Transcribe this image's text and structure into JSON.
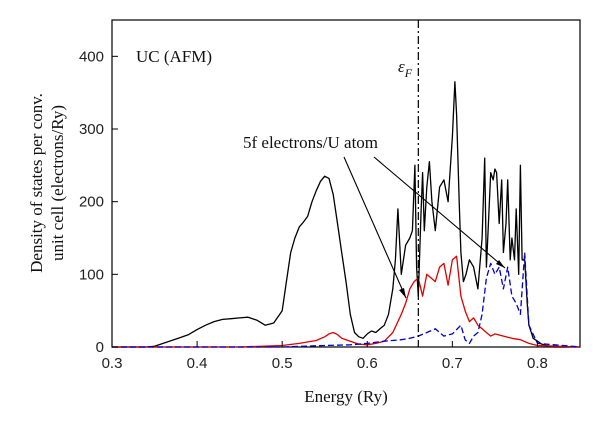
{
  "chart_data": {
    "type": "line",
    "title": "",
    "xlabel": "Energy (Ry)",
    "ylabel_line1": "Density of states per conv.",
    "ylabel_line2": "unit cell (electrons/Ry)",
    "xlim": [
      0.3,
      0.85
    ],
    "ylim": [
      0,
      450
    ],
    "xticks": [
      0.3,
      0.4,
      0.5,
      0.6,
      0.7,
      0.8
    ],
    "xtick_labels": [
      "0.3",
      "0.4",
      "0.5",
      "0.6",
      "0.7",
      "0.8"
    ],
    "yticks": [
      0,
      100,
      200,
      300,
      400
    ],
    "ytick_labels": [
      "0",
      "100",
      "200",
      "300",
      "400"
    ],
    "grid": false,
    "annotations": {
      "inset_label": "UC (AFM)",
      "fermi_label": "ε",
      "fermi_sub": "F",
      "fermi_energy": 0.66,
      "f_label": "5f electrons/U atom"
    },
    "colors": {
      "total": "#000000",
      "f_up": "#e00000",
      "f_down": "#0000cc",
      "fermi": "#000000"
    },
    "series": [
      {
        "style": "solid",
        "color": "#000000",
        "x": [
          0.3,
          0.34,
          0.35,
          0.36,
          0.37,
          0.38,
          0.39,
          0.4,
          0.41,
          0.42,
          0.43,
          0.44,
          0.45,
          0.46,
          0.47,
          0.48,
          0.49,
          0.5,
          0.505,
          0.51,
          0.515,
          0.52,
          0.525,
          0.53,
          0.535,
          0.54,
          0.545,
          0.55,
          0.555,
          0.56,
          0.565,
          0.57,
          0.575,
          0.58,
          0.585,
          0.59,
          0.595,
          0.6,
          0.605,
          0.61,
          0.615,
          0.62,
          0.625,
          0.63,
          0.633,
          0.636,
          0.64,
          0.645,
          0.65,
          0.653,
          0.656,
          0.658,
          0.66,
          0.663,
          0.665,
          0.667,
          0.67,
          0.673,
          0.676,
          0.68,
          0.685,
          0.69,
          0.695,
          0.7,
          0.703,
          0.705,
          0.708,
          0.71,
          0.713,
          0.716,
          0.72,
          0.725,
          0.73,
          0.735,
          0.738,
          0.74,
          0.742,
          0.745,
          0.748,
          0.75,
          0.752,
          0.755,
          0.758,
          0.76,
          0.763,
          0.765,
          0.768,
          0.77,
          0.773,
          0.775,
          0.778,
          0.78,
          0.782,
          0.785,
          0.788,
          0.79,
          0.795,
          0.8,
          0.805,
          0.81,
          0.815,
          0.82,
          0.85
        ],
        "y": [
          0,
          0,
          1,
          5,
          9,
          13,
          17,
          24,
          30,
          35,
          38,
          39,
          40,
          41,
          37,
          30,
          33,
          50,
          90,
          130,
          150,
          165,
          172,
          180,
          200,
          215,
          228,
          235,
          232,
          210,
          170,
          130,
          90,
          45,
          20,
          14,
          12,
          18,
          22,
          20,
          25,
          30,
          45,
          80,
          120,
          190,
          100,
          140,
          150,
          160,
          250,
          110,
          70,
          180,
          240,
          160,
          220,
          255,
          200,
          160,
          220,
          230,
          200,
          290,
          365,
          320,
          200,
          130,
          90,
          100,
          120,
          110,
          80,
          150,
          260,
          110,
          160,
          240,
          230,
          245,
          240,
          170,
          230,
          130,
          170,
          230,
          120,
          150,
          120,
          190,
          100,
          250,
          120,
          120,
          60,
          30,
          12,
          8,
          4,
          2,
          1,
          0,
          0
        ]
      },
      {
        "style": "solid",
        "color": "#e00000",
        "x": [
          0.3,
          0.45,
          0.5,
          0.52,
          0.54,
          0.55,
          0.555,
          0.56,
          0.565,
          0.57,
          0.58,
          0.59,
          0.6,
          0.61,
          0.62,
          0.63,
          0.64,
          0.645,
          0.65,
          0.655,
          0.66,
          0.665,
          0.67,
          0.675,
          0.68,
          0.685,
          0.69,
          0.695,
          0.7,
          0.705,
          0.71,
          0.715,
          0.72,
          0.725,
          0.73,
          0.735,
          0.74,
          0.745,
          0.75,
          0.76,
          0.77,
          0.78,
          0.79,
          0.8,
          0.85
        ],
        "y": [
          0,
          0,
          2,
          5,
          9,
          14,
          18,
          20,
          17,
          12,
          8,
          4,
          3,
          5,
          8,
          20,
          45,
          60,
          80,
          90,
          95,
          70,
          100,
          95,
          90,
          110,
          115,
          85,
          120,
          125,
          70,
          50,
          35,
          40,
          30,
          25,
          20,
          15,
          18,
          15,
          12,
          10,
          5,
          2,
          0
        ]
      },
      {
        "style": "dashed",
        "color": "#0000cc",
        "x": [
          0.3,
          0.5,
          0.55,
          0.58,
          0.6,
          0.62,
          0.64,
          0.65,
          0.66,
          0.67,
          0.68,
          0.69,
          0.7,
          0.71,
          0.715,
          0.72,
          0.725,
          0.73,
          0.735,
          0.74,
          0.745,
          0.75,
          0.755,
          0.76,
          0.765,
          0.77,
          0.775,
          0.78,
          0.785,
          0.79,
          0.8,
          0.85
        ],
        "y": [
          0,
          0,
          2,
          3,
          5,
          8,
          10,
          12,
          15,
          20,
          25,
          15,
          18,
          30,
          10,
          5,
          15,
          20,
          45,
          95,
          115,
          100,
          110,
          80,
          110,
          70,
          60,
          45,
          130,
          30,
          5,
          0
        ]
      }
    ]
  }
}
